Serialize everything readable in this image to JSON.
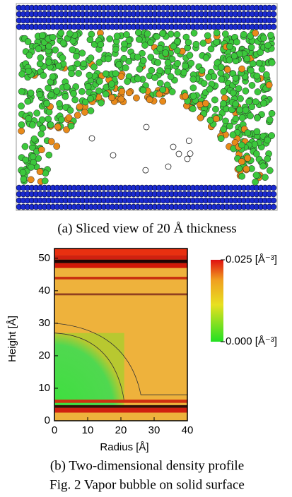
{
  "panel_a": {
    "caption": "(a) Sliced view of 20 Å thickness"
  },
  "panel_b": {
    "xlabel": "Radius [Å]",
    "ylabel": "Height [Å]",
    "xlim": [
      0,
      40
    ],
    "ylim": [
      0,
      53
    ],
    "xticks": [
      0,
      10,
      20,
      30,
      40
    ],
    "yticks": [
      0,
      10,
      20,
      30,
      40,
      50
    ],
    "colorbar": {
      "ticks": [
        {
          "value": 0.025,
          "label": "0.025 [Å⁻³]"
        },
        {
          "value": 0,
          "label": "0.000 [Å⁻³]"
        }
      ]
    },
    "caption": "(b) Two-dimensional density profile"
  },
  "figure_caption": "Fig. 2    Vapor bubble on solid surface"
}
